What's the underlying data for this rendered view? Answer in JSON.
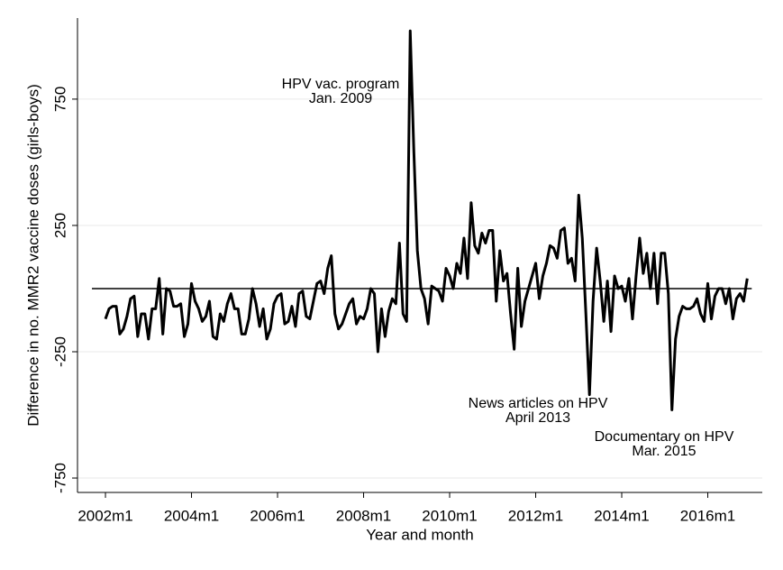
{
  "chart_data": {
    "type": "line",
    "y_label": "Difference in no. MMR2 vaccine doses (girls-boys)",
    "x_label": "Year and month",
    "x": [
      504,
      505,
      506,
      507,
      508,
      509,
      510,
      511,
      512,
      513,
      514,
      515,
      516,
      517,
      518,
      519,
      520,
      521,
      522,
      523,
      524,
      525,
      526,
      527,
      528,
      529,
      530,
      531,
      532,
      533,
      534,
      535,
      536,
      537,
      538,
      539,
      540,
      541,
      542,
      543,
      544,
      545,
      546,
      547,
      548,
      549,
      550,
      551,
      552,
      553,
      554,
      555,
      556,
      557,
      558,
      559,
      560,
      561,
      562,
      563,
      564,
      565,
      566,
      567,
      568,
      569,
      570,
      571,
      572,
      573,
      574,
      575,
      576,
      577,
      578,
      579,
      580,
      581,
      582,
      583,
      584,
      585,
      586,
      587,
      588,
      589,
      590,
      591,
      592,
      593,
      594,
      595,
      596,
      597,
      598,
      599,
      600,
      601,
      602,
      603,
      604,
      605,
      606,
      607,
      608,
      609,
      610,
      611,
      612,
      613,
      614,
      615,
      616,
      617,
      618,
      619,
      620,
      621,
      622,
      623,
      624,
      625,
      626,
      627,
      628,
      629,
      630,
      631,
      632,
      633,
      634,
      635,
      636,
      637,
      638,
      639,
      640,
      641,
      642,
      643,
      644,
      645,
      646,
      647,
      648,
      649,
      650,
      651,
      652,
      653,
      654,
      655,
      656,
      657,
      658,
      659,
      660,
      661,
      662,
      663,
      664,
      665,
      666,
      667,
      668,
      669,
      670,
      671,
      672,
      673,
      674,
      675,
      676,
      677,
      678,
      679,
      680,
      681,
      682,
      683
    ],
    "series": [
      {
        "name": "Difference",
        "color": "#000000",
        "values": [
          -120,
          -80,
          -70,
          -70,
          -180,
          -160,
          -110,
          -40,
          -30,
          -190,
          -100,
          -100,
          -200,
          -80,
          -80,
          40,
          -180,
          0,
          -10,
          -70,
          -70,
          -60,
          -190,
          -140,
          20,
          -50,
          -80,
          -130,
          -110,
          -50,
          -190,
          -200,
          -100,
          -130,
          -60,
          -20,
          -80,
          -80,
          -180,
          -180,
          -120,
          0,
          -60,
          -150,
          -80,
          -200,
          -160,
          -60,
          -30,
          -20,
          -140,
          -130,
          -70,
          -150,
          -20,
          -10,
          -110,
          -120,
          -50,
          20,
          30,
          -20,
          80,
          130,
          -100,
          -160,
          -140,
          -100,
          -60,
          -40,
          -140,
          -110,
          -120,
          -80,
          0,
          -20,
          -250,
          -80,
          -190,
          -90,
          -40,
          -60,
          180,
          -100,
          -130,
          1020,
          550,
          150,
          0,
          -40,
          -140,
          10,
          0,
          -10,
          -50,
          80,
          50,
          0,
          100,
          60,
          200,
          40,
          340,
          170,
          140,
          220,
          180,
          230,
          230,
          -50,
          150,
          30,
          60,
          -100,
          -240,
          80,
          -150,
          -50,
          0,
          50,
          100,
          -40,
          50,
          100,
          170,
          160,
          120,
          230,
          240,
          100,
          120,
          30,
          370,
          200,
          -100,
          -420,
          -50,
          160,
          30,
          -130,
          30,
          -170,
          50,
          0,
          10,
          -50,
          40,
          -120,
          50,
          200,
          60,
          140,
          0,
          140,
          -60,
          140,
          140,
          -20,
          -480,
          -200,
          -110,
          -70,
          -80,
          -80,
          -70,
          -40,
          -100,
          -130,
          20,
          -120,
          -30,
          0,
          0,
          -60,
          0,
          -120,
          -40,
          -20,
          -50,
          40
        ]
      }
    ],
    "hline": 0,
    "xlim": [
      496.2,
      687.2
    ],
    "ylim": [
      -807,
      1071
    ],
    "yticks": [
      -750,
      -250,
      250,
      750
    ],
    "xticks": [
      {
        "value": 504,
        "label": "2002m1"
      },
      {
        "value": 528,
        "label": "2004m1"
      },
      {
        "value": 552,
        "label": "2006m1"
      },
      {
        "value": 576,
        "label": "2008m1"
      },
      {
        "value": 600,
        "label": "2010m1"
      },
      {
        "value": 624,
        "label": "2012m1"
      },
      {
        "value": 648,
        "label": "2014m1"
      },
      {
        "value": 672,
        "label": "2016m1"
      }
    ],
    "grid": true,
    "annotations": [
      [
        "HPV vac. program",
        "Jan. 2009"
      ],
      [
        "News articles on HPV",
        "April 2013"
      ],
      [
        "Documentary on HPV",
        "Mar. 2015"
      ]
    ]
  }
}
